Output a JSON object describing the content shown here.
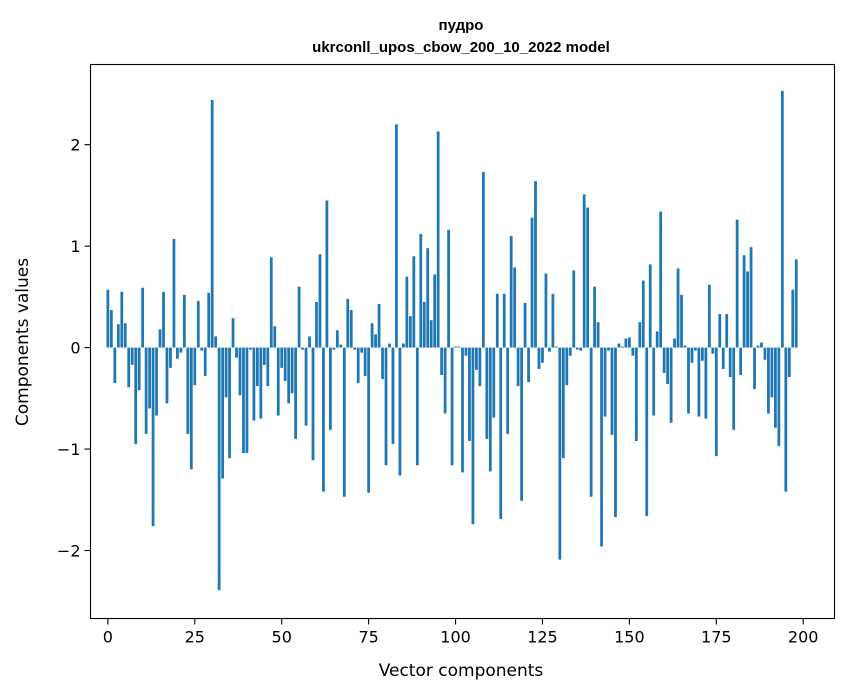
{
  "chart_data": {
    "type": "bar",
    "title": "пудро",
    "subtitle": "ukrconll_upos_cbow_200_10_2022 model",
    "xlabel": "Vector components",
    "ylabel": "Components values",
    "xlim": [
      -5,
      209
    ],
    "ylim": [
      -2.67,
      2.79
    ],
    "xticks": [
      0,
      25,
      50,
      75,
      100,
      125,
      150,
      175,
      200
    ],
    "yticks": [
      -2,
      -1,
      0,
      1,
      2
    ],
    "grid": false,
    "bar_color": "#1f77b4",
    "values": [
      0.57,
      0.37,
      -0.35,
      0.23,
      0.55,
      0.24,
      -0.39,
      -0.17,
      -0.95,
      -0.42,
      0.59,
      -0.85,
      -0.6,
      -1.76,
      -0.67,
      0.18,
      0.55,
      -0.55,
      -0.2,
      1.07,
      -0.11,
      -0.05,
      0.52,
      -0.85,
      -1.2,
      -0.37,
      0.46,
      -0.03,
      -0.28,
      0.54,
      2.44,
      0.11,
      -2.39,
      -1.29,
      -0.49,
      -1.09,
      0.29,
      -0.1,
      -0.47,
      -1.04,
      -1.04,
      -0.02,
      -0.72,
      -0.38,
      -0.7,
      -0.17,
      -0.38,
      0.89,
      0.21,
      -0.67,
      -0.2,
      -0.33,
      -0.55,
      -0.45,
      -0.9,
      0.6,
      -0.02,
      -0.77,
      0.11,
      -1.11,
      0.45,
      0.92,
      -1.42,
      1.45,
      -0.81,
      -0.02,
      0.17,
      0.03,
      -1.47,
      0.48,
      0.37,
      -0.02,
      -0.35,
      -0.05,
      -0.28,
      -1.43,
      0.24,
      0.13,
      0.43,
      -0.31,
      -1.16,
      0.04,
      -0.95,
      2.2,
      -1.26,
      0.04,
      0.7,
      0.31,
      0.9,
      -1.16,
      1.12,
      0.45,
      0.98,
      0.27,
      0.72,
      2.13,
      -0.27,
      -0.65,
      1.16,
      -1.16,
      0.01,
      0.01,
      -1.23,
      -0.08,
      -0.92,
      -1.74,
      -0.22,
      -0.38,
      1.73,
      -0.9,
      -1.22,
      -0.69,
      0.53,
      -1.69,
      0.53,
      -0.85,
      1.1,
      0.79,
      -0.38,
      -1.51,
      0.44,
      -0.34,
      1.28,
      1.64,
      -0.21,
      -0.15,
      0.73,
      -0.04,
      0.53,
      0.01,
      -2.09,
      -1.09,
      -0.37,
      -0.08,
      0.76,
      -0.02,
      -0.03,
      1.51,
      1.38,
      -1.47,
      0.6,
      0.25,
      -1.96,
      -0.68,
      -0.03,
      -0.86,
      -1.67,
      0.04,
      0.01,
      0.09,
      0.1,
      -0.08,
      -0.92,
      0.25,
      0.66,
      -1.66,
      0.82,
      -0.67,
      0.16,
      1.34,
      -0.25,
      -0.36,
      -0.74,
      0.09,
      0.78,
      0.52,
      0.02,
      -0.65,
      -0.15,
      -0.03,
      -0.68,
      -0.13,
      -0.7,
      0.62,
      -0.06,
      -1.07,
      0.33,
      -0.21,
      0.33,
      -0.29,
      -0.81,
      1.26,
      -0.27,
      0.91,
      0.75,
      0.99,
      -0.41,
      0.02,
      0.05,
      -0.12,
      -0.65,
      -0.49,
      -0.79,
      -0.97,
      2.53,
      -1.42,
      -0.29,
      0.57,
      0.87
    ]
  }
}
